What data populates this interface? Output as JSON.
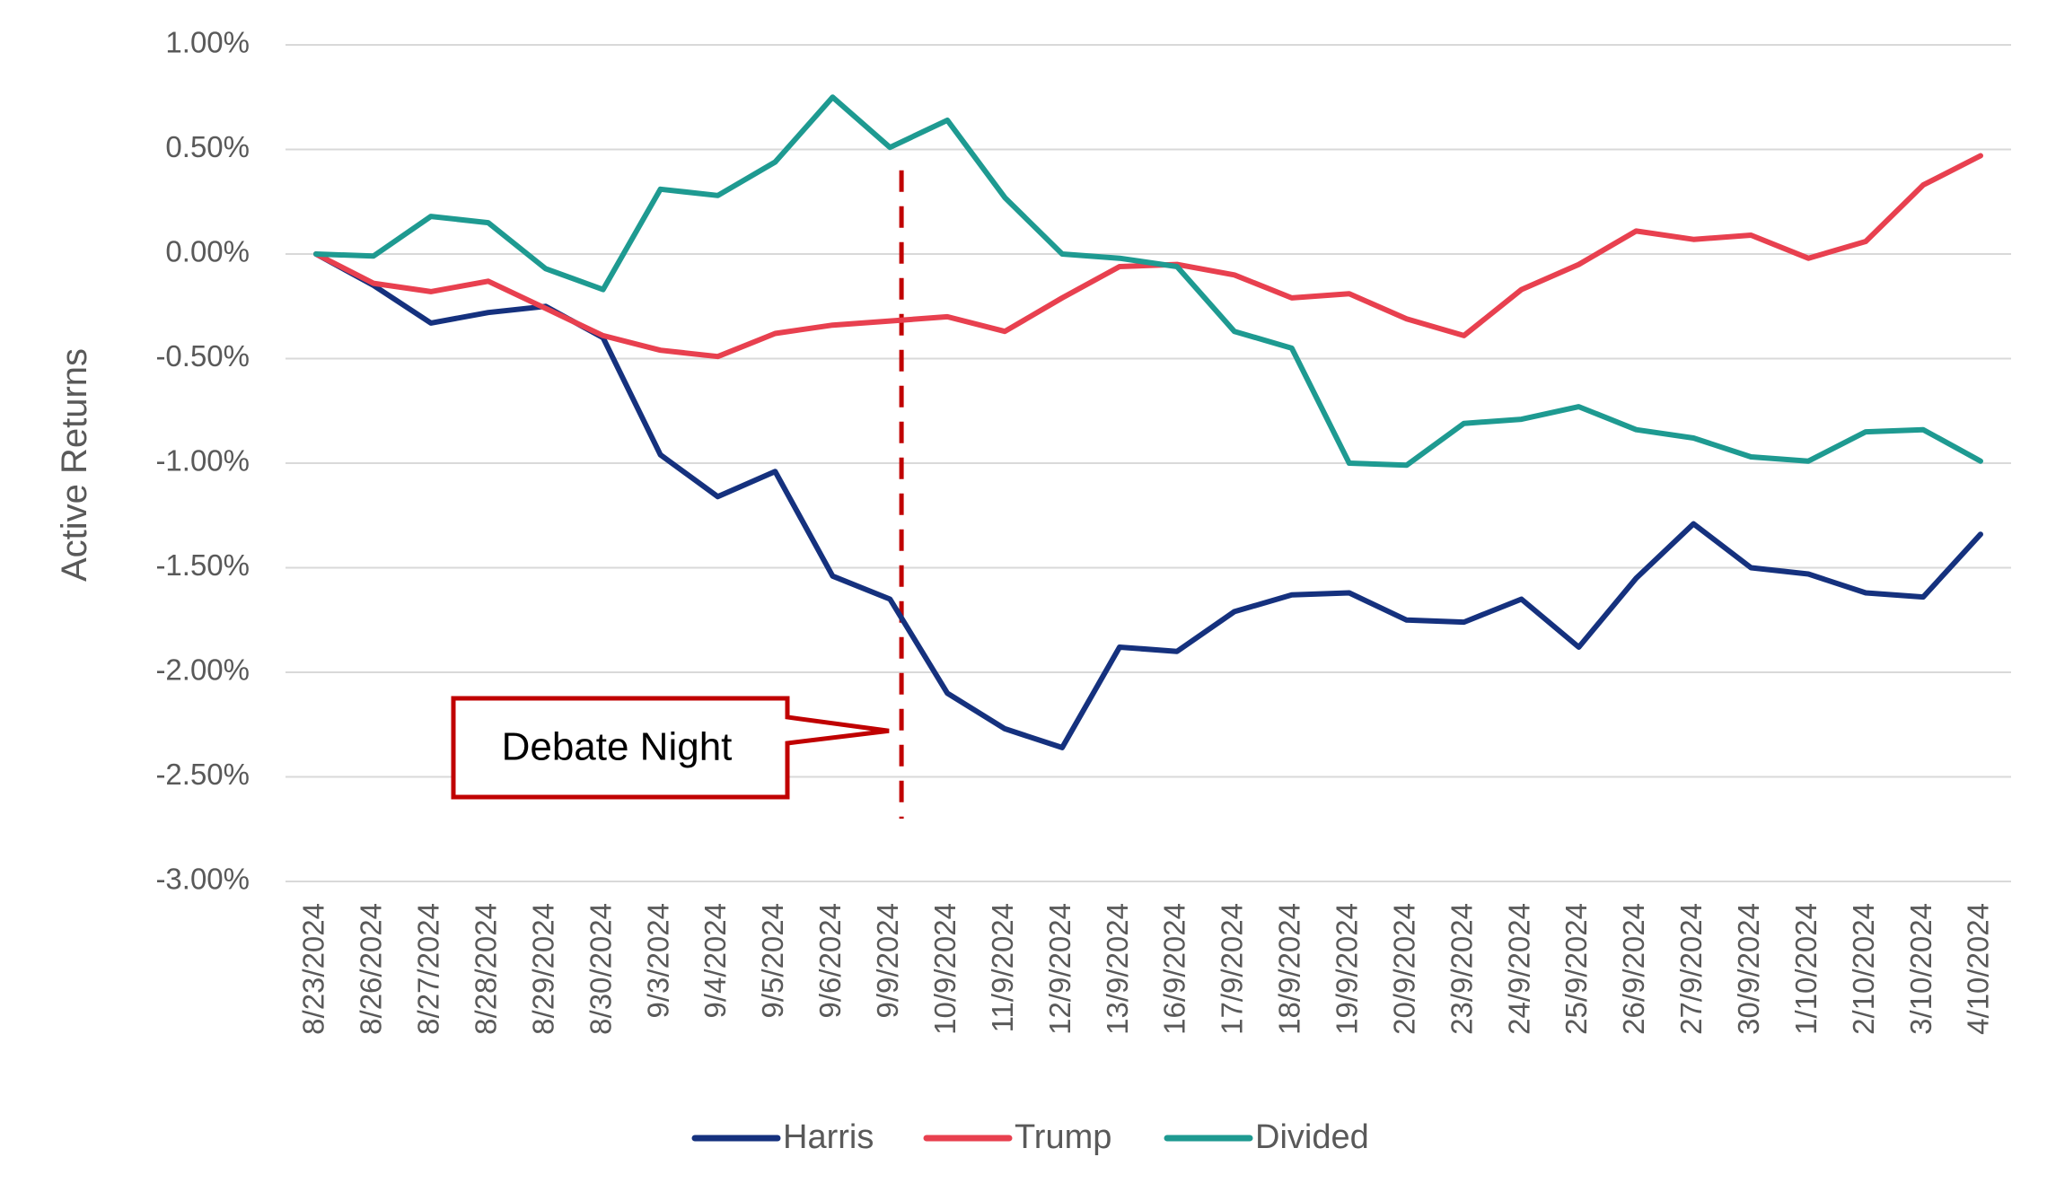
{
  "chart_data": {
    "type": "line",
    "title": "",
    "xlabel": "",
    "ylabel": "Active Returns",
    "ylim": [
      -3.0,
      1.0
    ],
    "yticks": [
      1.0,
      0.5,
      0.0,
      -0.5,
      -1.0,
      -1.5,
      -2.0,
      -2.5,
      -3.0
    ],
    "ytick_labels": [
      "1.00%",
      "0.50%",
      "0.00%",
      "-0.50%",
      "-1.00%",
      "-1.50%",
      "-2.00%",
      "-2.50%",
      "-3.00%"
    ],
    "y_unit": "%",
    "grid": "horizontal",
    "legend_position": "bottom",
    "categories": [
      "8/23/2024",
      "8/26/2024",
      "8/27/2024",
      "8/28/2024",
      "8/29/2024",
      "8/30/2024",
      "9/3/2024",
      "9/4/2024",
      "9/5/2024",
      "9/6/2024",
      "9/9/2024",
      "10/9/2024",
      "11/9/2024",
      "12/9/2024",
      "13/9/2024",
      "16/9/2024",
      "17/9/2024",
      "18/9/2024",
      "19/9/2024",
      "20/9/2024",
      "23/9/2024",
      "24/9/2024",
      "25/9/2024",
      "26/9/2024",
      "27/9/2024",
      "30/9/2024",
      "1/10/2024",
      "2/10/2024",
      "3/10/2024",
      "4/10/2024"
    ],
    "series": [
      {
        "name": "Harris",
        "color": "#15317E",
        "values": [
          0.0,
          -0.15,
          -0.33,
          -0.28,
          -0.25,
          -0.4,
          -0.96,
          -1.16,
          -1.04,
          -1.54,
          -1.65,
          -2.1,
          -2.27,
          -2.36,
          -1.88,
          -1.9,
          -1.71,
          -1.63,
          -1.62,
          -1.75,
          -1.76,
          -1.65,
          -1.88,
          -1.55,
          -1.29,
          -1.5,
          -1.53,
          -1.62,
          -1.64,
          -1.34
        ]
      },
      {
        "name": "Trump",
        "color": "#E8404F",
        "values": [
          0.0,
          -0.14,
          -0.18,
          -0.13,
          -0.26,
          -0.39,
          -0.46,
          -0.49,
          -0.38,
          -0.34,
          -0.32,
          -0.3,
          -0.37,
          -0.21,
          -0.06,
          -0.05,
          -0.1,
          -0.21,
          -0.19,
          -0.31,
          -0.39,
          -0.17,
          -0.05,
          0.11,
          0.07,
          0.09,
          -0.02,
          0.06,
          0.33,
          0.47
        ]
      },
      {
        "name": "Divided",
        "color": "#1E9A91",
        "values": [
          0.0,
          -0.01,
          0.18,
          0.15,
          -0.07,
          -0.17,
          0.31,
          0.28,
          0.44,
          0.75,
          0.51,
          0.64,
          0.27,
          0.0,
          -0.02,
          -0.06,
          -0.37,
          -0.45,
          -1.0,
          -1.01,
          -0.81,
          -0.79,
          -0.73,
          -0.84,
          -0.88,
          -0.97,
          -0.99,
          -0.85,
          -0.84,
          -0.99
        ]
      }
    ],
    "annotations": [
      {
        "text": "Debate Night",
        "color": "#C00000",
        "marker_after_category": "9/9/2024",
        "marker_style": "dashed-vertical-line",
        "marker_y_range": [
          -2.7,
          0.4
        ],
        "arrow_target_value": -2.28
      }
    ]
  }
}
